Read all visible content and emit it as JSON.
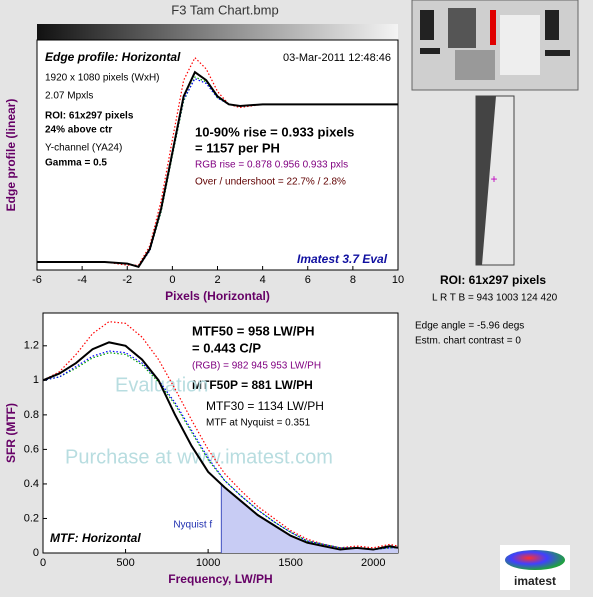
{
  "window_title": "F3 Tam Chart.bmp",
  "sidebar": {
    "roi": "ROI:  61x297 pixels",
    "lrtb": "L R  T B = 943 1003  124 420",
    "edge_angle": "Edge angle = -5.96 degs",
    "contrast": "Estm. chart contrast = 0",
    "logo": "imatest"
  },
  "chart_data": [
    {
      "type": "line",
      "xlabel": "Pixels (Horizontal)",
      "ylabel": "Edge profile (linear)",
      "x": [
        -6,
        -5,
        -4,
        -3,
        -2,
        -1.5,
        -1,
        -0.5,
        0,
        0.5,
        1,
        1.5,
        2,
        2.5,
        3,
        4,
        5,
        6,
        8,
        10
      ],
      "xlim": [
        -6,
        10
      ],
      "xticks": [
        -6,
        -4,
        -2,
        0,
        2,
        4,
        6,
        8,
        10
      ],
      "ylim": [
        -0.03,
        1.4
      ],
      "series": [
        {
          "color": "#ff0000",
          "style": "dotted",
          "values": [
            0.02,
            0.02,
            0.02,
            0.02,
            0.0,
            0.0,
            0.12,
            0.4,
            0.78,
            1.15,
            1.29,
            1.22,
            1.08,
            1.0,
            0.98,
            1.0,
            1.0,
            1.0,
            1.0,
            1.0
          ]
        },
        {
          "color": "#00a000",
          "style": "dotted",
          "values": [
            0.02,
            0.02,
            0.02,
            0.02,
            0.01,
            -0.01,
            0.09,
            0.33,
            0.68,
            1.02,
            1.17,
            1.14,
            1.04,
            1.0,
            0.99,
            1.0,
            1.0,
            1.0,
            1.0,
            1.0
          ]
        },
        {
          "color": "#0000ff",
          "style": "dotted",
          "values": [
            0.02,
            0.02,
            0.02,
            0.02,
            0.01,
            -0.01,
            0.09,
            0.34,
            0.69,
            1.03,
            1.16,
            1.13,
            1.04,
            1.0,
            0.99,
            1.0,
            1.0,
            1.0,
            1.0,
            1.0
          ]
        },
        {
          "color": "#000000",
          "style": "solid",
          "values": [
            0.02,
            0.02,
            0.02,
            0.02,
            0.01,
            -0.01,
            0.1,
            0.35,
            0.7,
            1.05,
            1.2,
            1.15,
            1.05,
            1.0,
            0.99,
            1.0,
            1.0,
            1.0,
            1.0,
            1.0
          ]
        }
      ],
      "annotations": [
        "Edge profile: Horizontal",
        "03-Mar-2011 12:48:46",
        "1920 x 1080 pixels (WxH)",
        "2.07 Mpxls",
        "ROI:  61x297 pixels",
        "24% above ctr",
        "Y-channel  (YA24)",
        "Gamma = 0.5",
        "10-90% rise = 0.933 pixels",
        "= 1157 per PH",
        "RGB rise = 0.878  0.956  0.933 pxls",
        "Over / undershoot = 22.7% / 2.8%",
        "Imatest 3.7 Eval"
      ]
    },
    {
      "type": "line",
      "xlabel": "Frequency, LW/PH",
      "ylabel": "SFR (MTF)",
      "x": [
        0,
        100,
        200,
        300,
        400,
        500,
        600,
        700,
        800,
        900,
        1000,
        1100,
        1200,
        1300,
        1400,
        1500,
        1600,
        1700,
        1800,
        1900,
        2000,
        2100,
        2150
      ],
      "xlim": [
        0,
        2150
      ],
      "xticks": [
        0,
        500,
        1000,
        1500,
        2000
      ],
      "ylim": [
        0,
        1.39
      ],
      "yticks": [
        0,
        0.2,
        0.4,
        0.6,
        0.8,
        1,
        1.2
      ],
      "nyquist": 1080,
      "nyquist_label": "Nyquist f",
      "series": [
        {
          "color": "#ff0000",
          "style": "dotted",
          "values": [
            1.0,
            1.05,
            1.15,
            1.27,
            1.34,
            1.33,
            1.25,
            1.12,
            0.95,
            0.77,
            0.6,
            0.46,
            0.36,
            0.27,
            0.2,
            0.13,
            0.08,
            0.05,
            0.03,
            0.04,
            0.03,
            0.05,
            0.04
          ]
        },
        {
          "color": "#00a000",
          "style": "dotted",
          "values": [
            1.0,
            1.02,
            1.07,
            1.13,
            1.16,
            1.15,
            1.09,
            0.99,
            0.86,
            0.7,
            0.54,
            0.42,
            0.33,
            0.25,
            0.18,
            0.12,
            0.07,
            0.05,
            0.03,
            0.03,
            0.02,
            0.03,
            0.03
          ]
        },
        {
          "color": "#0000ff",
          "style": "dotted",
          "values": [
            1.0,
            1.02,
            1.08,
            1.14,
            1.17,
            1.16,
            1.1,
            1.0,
            0.87,
            0.71,
            0.55,
            0.42,
            0.33,
            0.25,
            0.18,
            0.12,
            0.07,
            0.05,
            0.03,
            0.03,
            0.02,
            0.03,
            0.03
          ]
        },
        {
          "color": "#000000",
          "style": "solid",
          "values": [
            1.0,
            1.04,
            1.1,
            1.18,
            1.22,
            1.2,
            1.12,
            1.0,
            0.8,
            0.62,
            0.47,
            0.38,
            0.3,
            0.22,
            0.16,
            0.1,
            0.06,
            0.04,
            0.02,
            0.03,
            0.02,
            0.04,
            0.03
          ]
        }
      ],
      "annotations": [
        "MTF50 = 958 LW/PH",
        "= 0.443 C/P",
        "(RGB) = 982  945  953 LW/PH",
        "MTF50P = 881 LW/PH",
        "MTF30 = 1134 LW/PH",
        "MTF at Nyquist = 0.351",
        "MTF: Horizontal",
        "Evaluation",
        "Purchase at www.imatest.com"
      ]
    }
  ]
}
